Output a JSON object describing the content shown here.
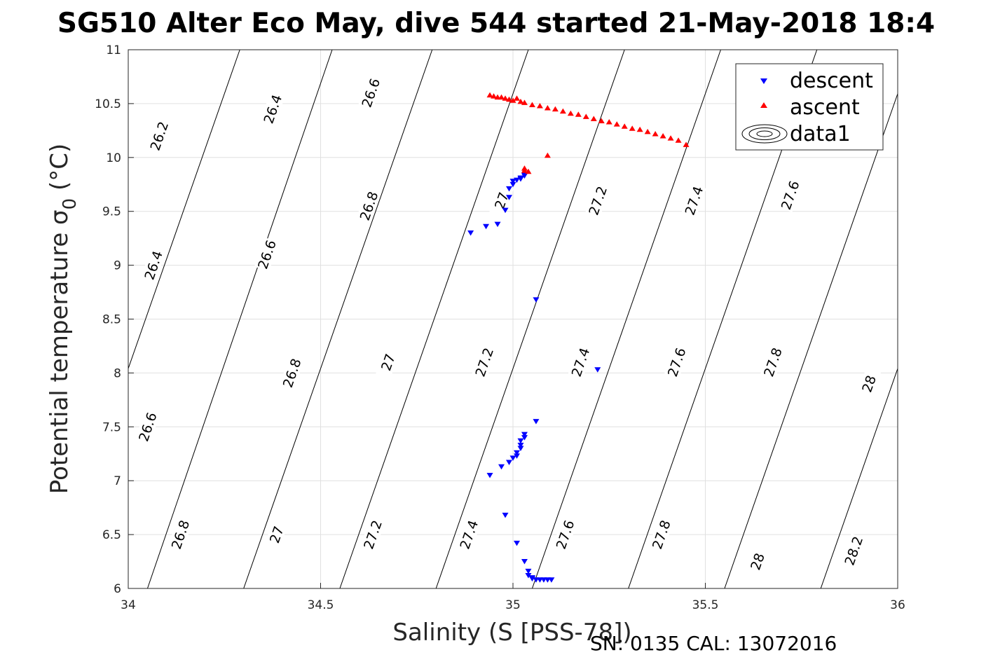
{
  "footer": {
    "serial": "SN: 0135  CAL: 13072016"
  },
  "chart_data": {
    "type": "scatter",
    "title": "SG510 Alter Eco May, dive 544 started 21-May-2018 18:4",
    "xlabel": "Salinity (S [PSS-78])",
    "ylabel": "Potential temperature σ",
    "ylabel_subscript": "0",
    "ylabel_suffix": " (°C)",
    "xlim": [
      34,
      36
    ],
    "ylim": [
      6,
      11
    ],
    "x_ticks": [
      "34",
      "34.5",
      "35",
      "35.5",
      "36"
    ],
    "y_ticks": [
      "6",
      "6.5",
      "7",
      "7.5",
      "8",
      "8.5",
      "9",
      "9.5",
      "10",
      "10.5",
      "11"
    ],
    "grid": true,
    "legend_position": "top-right",
    "legend": [
      "descent",
      "ascent",
      "data1"
    ],
    "colors": {
      "descent": "#0000ff",
      "ascent": "#ff0000",
      "contour": "#000000",
      "grid": "#e0e0e0"
    },
    "series": [
      {
        "name": "descent",
        "marker": "triangle-down",
        "points": [
          [
            34.89,
            9.3
          ],
          [
            34.93,
            9.36
          ],
          [
            34.96,
            9.38
          ],
          [
            34.98,
            9.51
          ],
          [
            34.99,
            9.63
          ],
          [
            34.99,
            9.71
          ],
          [
            35.0,
            9.75
          ],
          [
            35.0,
            9.78
          ],
          [
            35.01,
            9.79
          ],
          [
            35.02,
            9.8
          ],
          [
            35.02,
            9.81
          ],
          [
            35.03,
            9.83
          ],
          [
            35.03,
            9.84
          ],
          [
            35.06,
            8.68
          ],
          [
            35.22,
            8.03
          ],
          [
            35.06,
            7.55
          ],
          [
            35.03,
            7.43
          ],
          [
            35.03,
            7.4
          ],
          [
            35.02,
            7.37
          ],
          [
            35.02,
            7.33
          ],
          [
            35.02,
            7.3
          ],
          [
            35.01,
            7.26
          ],
          [
            35.01,
            7.23
          ],
          [
            35.0,
            7.21
          ],
          [
            34.99,
            7.17
          ],
          [
            34.97,
            7.13
          ],
          [
            34.94,
            7.05
          ],
          [
            34.98,
            6.68
          ],
          [
            35.01,
            6.42
          ],
          [
            35.03,
            6.25
          ],
          [
            35.04,
            6.16
          ],
          [
            35.04,
            6.12
          ],
          [
            35.05,
            6.1
          ],
          [
            35.05,
            6.09
          ],
          [
            35.06,
            6.08
          ],
          [
            35.07,
            6.08
          ],
          [
            35.08,
            6.08
          ],
          [
            35.09,
            6.08
          ],
          [
            35.1,
            6.08
          ]
        ]
      },
      {
        "name": "ascent",
        "marker": "triangle-up",
        "points": [
          [
            34.94,
            10.58
          ],
          [
            34.95,
            10.57
          ],
          [
            34.96,
            10.56
          ],
          [
            34.97,
            10.56
          ],
          [
            34.98,
            10.55
          ],
          [
            34.99,
            10.54
          ],
          [
            35.0,
            10.53
          ],
          [
            35.01,
            10.55
          ],
          [
            35.02,
            10.52
          ],
          [
            35.03,
            10.51
          ],
          [
            35.05,
            10.49
          ],
          [
            35.07,
            10.48
          ],
          [
            35.09,
            10.46
          ],
          [
            35.11,
            10.45
          ],
          [
            35.13,
            10.43
          ],
          [
            35.15,
            10.41
          ],
          [
            35.17,
            10.4
          ],
          [
            35.19,
            10.38
          ],
          [
            35.21,
            10.36
          ],
          [
            35.23,
            10.34
          ],
          [
            35.25,
            10.33
          ],
          [
            35.27,
            10.31
          ],
          [
            35.29,
            10.29
          ],
          [
            35.31,
            10.27
          ],
          [
            35.33,
            10.26
          ],
          [
            35.35,
            10.24
          ],
          [
            35.37,
            10.22
          ],
          [
            35.39,
            10.2
          ],
          [
            35.41,
            10.18
          ],
          [
            35.43,
            10.16
          ],
          [
            35.45,
            10.12
          ],
          [
            35.09,
            10.02
          ],
          [
            35.03,
            9.9
          ],
          [
            35.03,
            9.88
          ],
          [
            35.04,
            9.87
          ]
        ]
      }
    ],
    "contours": [
      {
        "x0": 34.05,
        "x1": 34.53,
        "y0": 6,
        "y1": 11,
        "labels": [
          {
            "text": "26.8",
            "x": 34.135,
            "y": 6.5
          },
          {
            "text": "26.6",
            "x": 34.05,
            "y": 7.5
          },
          {
            "text": "26.4",
            "x": 34.065,
            "y": 9.0
          },
          {
            "text": "26.2",
            "x": 34.08,
            "y": 10.2
          }
        ]
      },
      {
        "x0": 34.3,
        "x1": 34.79,
        "y0": 6,
        "y1": 11,
        "labels": [
          {
            "text": "27",
            "x": 34.385,
            "y": 6.5
          },
          {
            "text": "26.8",
            "x": 34.425,
            "y": 8.0
          },
          {
            "text": "26.6",
            "x": 34.36,
            "y": 9.1
          },
          {
            "text": "26.4",
            "x": 34.375,
            "y": 10.45
          }
        ]
      },
      {
        "x0": 34.55,
        "x1": 35.04,
        "y0": 6,
        "y1": 11,
        "labels": [
          {
            "text": "27.2",
            "x": 34.635,
            "y": 6.5
          },
          {
            "text": "27",
            "x": 34.675,
            "y": 8.1
          },
          {
            "text": "26.8",
            "x": 34.625,
            "y": 9.55
          },
          {
            "text": "26.6",
            "x": 34.63,
            "y": 10.6
          }
        ]
      },
      {
        "x0": 34.8,
        "x1": 35.29,
        "y0": 6,
        "y1": 11,
        "labels": [
          {
            "text": "27.4",
            "x": 34.885,
            "y": 6.5
          },
          {
            "text": "27.2",
            "x": 34.925,
            "y": 8.1
          },
          {
            "text": "27",
            "x": 34.97,
            "y": 9.6
          }
        ]
      },
      {
        "x0": 35.05,
        "x1": 35.54,
        "y0": 6,
        "y1": 11,
        "labels": [
          {
            "text": "27.6",
            "x": 35.135,
            "y": 6.5
          },
          {
            "text": "27.4",
            "x": 35.175,
            "y": 8.1
          },
          {
            "text": "27.2",
            "x": 35.22,
            "y": 9.6
          }
        ]
      },
      {
        "x0": 35.3,
        "x1": 35.79,
        "y0": 6,
        "y1": 11,
        "labels": [
          {
            "text": "27.8",
            "x": 35.385,
            "y": 6.5
          },
          {
            "text": "27.6",
            "x": 35.425,
            "y": 8.1
          },
          {
            "text": "27.4",
            "x": 35.47,
            "y": 9.6
          }
        ]
      },
      {
        "x0": 35.55,
        "x1": 36.04,
        "y0": 6,
        "y1": 11,
        "labels": [
          {
            "text": "28",
            "x": 35.635,
            "y": 6.25
          },
          {
            "text": "27.8",
            "x": 35.675,
            "y": 8.1
          },
          {
            "text": "27.6",
            "x": 35.72,
            "y": 9.65
          }
        ]
      },
      {
        "x0": 35.8,
        "x1": 36.29,
        "y0": 6,
        "y1": 11,
        "labels": [
          {
            "text": "28.2",
            "x": 35.885,
            "y": 6.35
          },
          {
            "text": "28",
            "x": 35.925,
            "y": 7.9
          }
        ]
      },
      {
        "x0": 36.05,
        "x1": 36.54,
        "y0": 6,
        "y1": 11,
        "labels": []
      },
      {
        "x0": 33.8,
        "x1": 34.29,
        "y0": 6,
        "y1": 11,
        "labels": []
      }
    ]
  }
}
